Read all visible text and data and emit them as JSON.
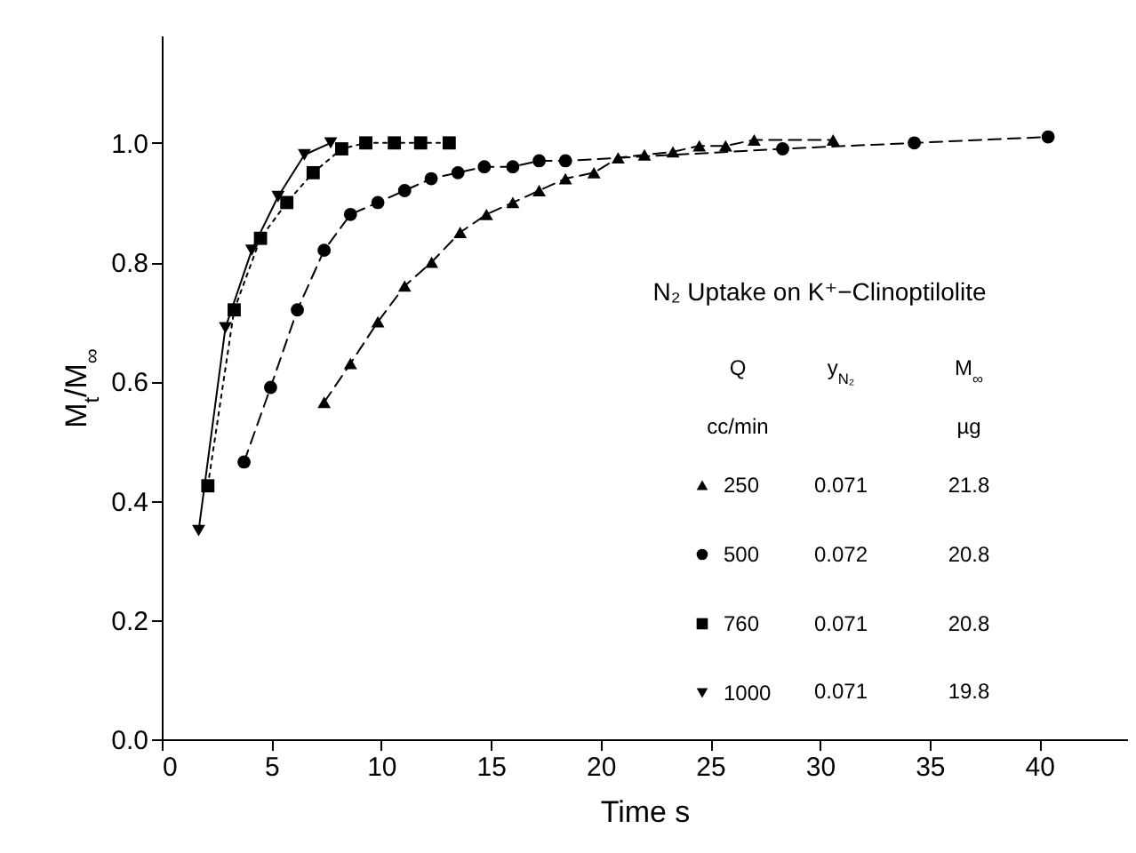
{
  "chart_data": {
    "type": "line",
    "xlabel": "Time s",
    "ylabel": "M$_{t}$/M$_{∞}$",
    "legend_title": "N₂ Uptake on K⁺−Clinoptilolite",
    "annotations": [
      "Q",
      "y$_{N₂}$",
      "M$_{∞}$",
      "cc/min",
      "µg",
      "0.071",
      "21.8",
      "0.072",
      "20.8",
      "0.071",
      "20.8",
      "0.071",
      "19.8"
    ],
    "xlim": [
      0,
      44
    ],
    "ylim": [
      0,
      1.18
    ],
    "xticks": [
      0,
      5,
      10,
      15,
      20,
      25,
      30,
      35,
      40
    ],
    "yticks": [
      {
        "value": 0,
        "label": "0.0"
      },
      {
        "value": 0.2,
        "label": "0.2"
      },
      {
        "value": 0.4,
        "label": "0.4"
      },
      {
        "value": 0.6,
        "label": "0.6"
      },
      {
        "value": 0.8,
        "label": "0.8"
      },
      {
        "value": 1,
        "label": "1.0"
      }
    ],
    "grid": false,
    "legend": "bottom right",
    "series": [
      {
        "name": "250",
        "color": "#000000",
        "marker": "triangle",
        "line_style": "dashed",
        "x": [
          7.4,
          8.6,
          9.85,
          11.07,
          12.3,
          13.6,
          14.8,
          16.0,
          17.2,
          18.4,
          19.7,
          20.8,
          22.0,
          23.3,
          24.5,
          25.7,
          27.0,
          30.6
        ],
        "values": [
          0.565,
          0.63,
          0.7,
          0.76,
          0.8,
          0.85,
          0.88,
          0.9,
          0.92,
          0.94,
          0.95,
          0.975,
          0.98,
          0.985,
          0.995,
          0.995,
          1.005,
          1.005
        ]
      },
      {
        "name": "500",
        "color": "#000000",
        "marker": "circle",
        "line_style": "dashed",
        "x": [
          3.75,
          4.96,
          6.18,
          7.4,
          8.6,
          9.85,
          11.07,
          12.28,
          13.5,
          14.7,
          16.0,
          17.2,
          18.4,
          28.3,
          34.3,
          40.4
        ],
        "values": [
          0.465,
          0.59,
          0.72,
          0.82,
          0.88,
          0.9,
          0.92,
          0.94,
          0.95,
          0.96,
          0.96,
          0.97,
          0.97,
          0.99,
          1.0,
          1.01
        ]
      },
      {
        "name": "760",
        "color": "#000000",
        "marker": "square",
        "line_style": "dotted",
        "x": [
          2.1,
          3.3,
          4.5,
          5.7,
          6.9,
          8.2,
          9.3,
          10.6,
          11.8,
          13.1
        ],
        "values": [
          0.425,
          0.72,
          0.84,
          0.9,
          0.95,
          0.99,
          1.0,
          1.0,
          1.0,
          1.0
        ]
      },
      {
        "name": "1000",
        "color": "#000000",
        "marker": "triangle-down",
        "line_style": "solid",
        "x": [
          1.68,
          2.9,
          4.1,
          5.3,
          6.5,
          7.7
        ],
        "values": [
          0.35,
          0.69,
          0.82,
          0.91,
          0.98,
          1.0
        ]
      }
    ]
  }
}
